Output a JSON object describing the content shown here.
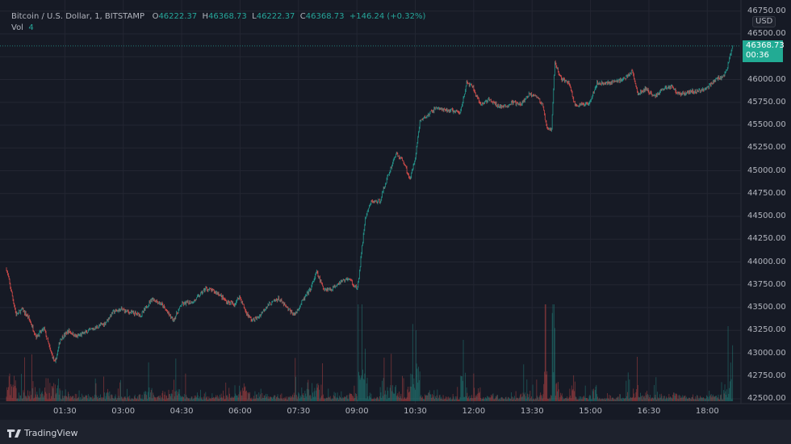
{
  "legend": {
    "symbol": "Bitcoin / U.S. Dollar, 1, BITSTAMP",
    "open_label": "O",
    "open": "46222.37",
    "high_label": "H",
    "high": "46368.73",
    "low_label": "L",
    "low": "46222.37",
    "close_label": "C",
    "close": "46368.73",
    "change": "+146.24 (+0.32%)",
    "vol_label": "Vol",
    "vol": "4"
  },
  "price_axis": {
    "currency": "USD",
    "last_price": "46368.73",
    "countdown": "00:36"
  },
  "brand": "TradingView",
  "colors": {
    "up": "#26a69a",
    "down": "#ef5350",
    "last_price_bg": "#22ab94",
    "background": "#161a25"
  },
  "chart_data": {
    "type": "candlestick",
    "interval": "1 minute",
    "ylim": [
      42500,
      46750
    ],
    "yticks": [
      "46750.00",
      "46500.00",
      "46000.00",
      "45750.00",
      "45500.00",
      "45250.00",
      "45000.00",
      "44750.00",
      "44500.00",
      "44250.00",
      "44000.00",
      "43750.00",
      "43500.00",
      "43250.00",
      "43000.00",
      "42750.00",
      "42500.00"
    ],
    "xticks": [
      "01:30",
      "03:00",
      "04:30",
      "06:00",
      "07:30",
      "09:00",
      "10:30",
      "12:00",
      "13:30",
      "15:00",
      "16:30",
      "18:00"
    ],
    "grid": true,
    "approx_price_path": [
      [
        "00:00",
        43925
      ],
      [
        "00:09",
        43625
      ],
      [
        "00:15",
        43420
      ],
      [
        "00:24",
        43480
      ],
      [
        "00:34",
        43390
      ],
      [
        "00:46",
        43180
      ],
      [
        "00:58",
        43270
      ],
      [
        "01:07",
        43040
      ],
      [
        "01:15",
        42890
      ],
      [
        "01:23",
        43155
      ],
      [
        "01:36",
        43245
      ],
      [
        "01:48",
        43180
      ],
      [
        "02:07",
        43245
      ],
      [
        "02:32",
        43330
      ],
      [
        "02:44",
        43450
      ],
      [
        "02:57",
        43480
      ],
      [
        "03:09",
        43450
      ],
      [
        "03:28",
        43420
      ],
      [
        "03:44",
        43600
      ],
      [
        "03:59",
        43535
      ],
      [
        "04:17",
        43360
      ],
      [
        "04:30",
        43535
      ],
      [
        "04:49",
        43570
      ],
      [
        "05:07",
        43710
      ],
      [
        "05:26",
        43660
      ],
      [
        "05:38",
        43570
      ],
      [
        "05:51",
        43535
      ],
      [
        "05:59",
        43625
      ],
      [
        "06:09",
        43450
      ],
      [
        "06:18",
        43360
      ],
      [
        "06:28",
        43390
      ],
      [
        "06:40",
        43510
      ],
      [
        "06:59",
        43600
      ],
      [
        "07:14",
        43480
      ],
      [
        "07:24",
        43420
      ],
      [
        "07:36",
        43570
      ],
      [
        "07:49",
        43710
      ],
      [
        "07:58",
        43890
      ],
      [
        "08:08",
        43710
      ],
      [
        "08:20",
        43700
      ],
      [
        "08:32",
        43775
      ],
      [
        "08:47",
        43820
      ],
      [
        "09:01",
        43700
      ],
      [
        "09:07",
        44100
      ],
      [
        "09:13",
        44480
      ],
      [
        "09:22",
        44660
      ],
      [
        "09:35",
        44660
      ],
      [
        "09:47",
        44925
      ],
      [
        "10:00",
        45190
      ],
      [
        "10:12",
        45100
      ],
      [
        "10:22",
        44900
      ],
      [
        "10:31",
        45190
      ],
      [
        "10:37",
        45545
      ],
      [
        "10:49",
        45605
      ],
      [
        "11:02",
        45695
      ],
      [
        "11:14",
        45660
      ],
      [
        "11:27",
        45660
      ],
      [
        "11:39",
        45630
      ],
      [
        "11:49",
        45960
      ],
      [
        "11:58",
        45925
      ],
      [
        "12:10",
        45720
      ],
      [
        "12:23",
        45780
      ],
      [
        "12:35",
        45720
      ],
      [
        "12:47",
        45695
      ],
      [
        "13:00",
        45750
      ],
      [
        "13:12",
        45720
      ],
      [
        "13:25",
        45835
      ],
      [
        "13:35",
        45835
      ],
      [
        "13:46",
        45720
      ],
      [
        "13:53",
        45455
      ],
      [
        "14:00",
        45455
      ],
      [
        "14:05",
        46190
      ],
      [
        "14:14",
        46015
      ],
      [
        "14:27",
        45960
      ],
      [
        "14:36",
        45720
      ],
      [
        "14:48",
        45720
      ],
      [
        "14:58",
        45750
      ],
      [
        "15:10",
        45960
      ],
      [
        "15:25",
        45960
      ],
      [
        "15:42",
        45985
      ],
      [
        "15:54",
        46015
      ],
      [
        "16:04",
        46100
      ],
      [
        "16:13",
        45835
      ],
      [
        "16:25",
        45900
      ],
      [
        "16:38",
        45810
      ],
      [
        "16:52",
        45900
      ],
      [
        "17:05",
        45925
      ],
      [
        "17:17",
        45835
      ],
      [
        "17:34",
        45870
      ],
      [
        "17:47",
        45870
      ],
      [
        "18:02",
        45925
      ],
      [
        "18:15",
        46015
      ],
      [
        "18:24",
        46015
      ],
      [
        "18:32",
        46165
      ],
      [
        "18:39",
        46368.73
      ]
    ]
  }
}
